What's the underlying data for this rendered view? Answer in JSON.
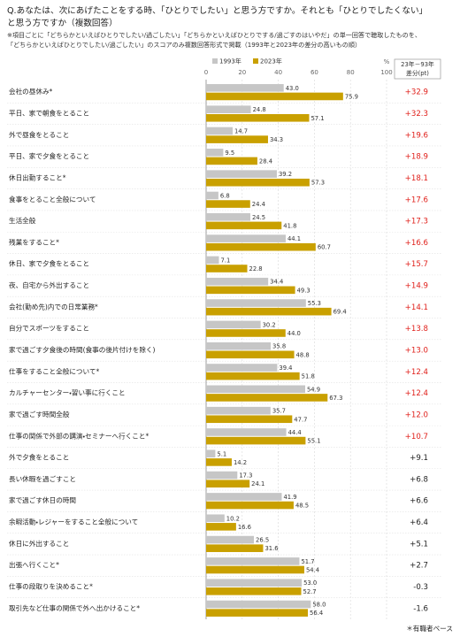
{
  "chart_data": {
    "type": "bar",
    "orientation": "horizontal",
    "title": [
      "Q.あなたは、次にあげたことをする時、「ひとりでしたい」と思う方ですか。それとも「ひとりでしたくない」",
      "と思う方ですか（複数回答）"
    ],
    "notes": [
      "※項目ごとに「どちらかといえばひとりでしたい/過ごしたい」「どちらかといえばひとりでする/過ごすのはいやだ」の単一回答で聴取したものを、",
      "「どちらかといえばひとりでしたい/過ごしたい」のスコアのみ複数回答形式で掲載（1993年と2023年の差分の高いもの順）"
    ],
    "footnote": "＊有職者ベース",
    "x_unit": "%",
    "xlim": [
      0,
      100
    ],
    "xticks": [
      0,
      20,
      40,
      60,
      80,
      100
    ],
    "grid": true,
    "categories": [
      "会社の昼休み*",
      "平日、家で朝食をとること",
      "外で昼食をとること",
      "平日、家で夕食をとること",
      "休日出勤すること*",
      "食事をとること全般について",
      "生活全般",
      "残業をすること*",
      "休日、家で夕食をとること",
      "夜、自宅から外出すること",
      "会社(勤め先)内での日常業務*",
      "自分でスポーツをすること",
      "家で過ごす夕食後の時間(食事の後片付けを除く)",
      "仕事をすること全般について*",
      "カルチャーセンター・習い事に行くこと",
      "家で過ごす時間全般",
      "仕事の関係で外部の講演・セミナーへ行くこと*",
      "外で夕食をとること",
      "長い休暇を過ごすこと",
      "家で過ごす休日の時間",
      "余暇活動・レジャーをすること全般について",
      "休日に外出すること",
      "出張へ行くこと*",
      "仕事の段取りを決めること*",
      "取引先など仕事の関係で外へ出かけること*"
    ],
    "series": [
      {
        "name": "1993年",
        "color": "#c6c6c6",
        "values": [
          43.0,
          24.8,
          14.7,
          9.5,
          39.2,
          6.8,
          24.5,
          44.1,
          7.1,
          34.4,
          55.3,
          30.2,
          35.8,
          39.4,
          54.9,
          35.7,
          44.4,
          5.1,
          17.3,
          41.9,
          10.2,
          26.5,
          51.7,
          53.0,
          58.0
        ],
        "value_labels": [
          "43.0",
          "24.8",
          "14.7",
          "9.5",
          "39.2",
          "6.8",
          "24.5",
          "44.1",
          "7.1",
          "34.4",
          "55.3",
          "30.2",
          "35.8",
          "39.4",
          "54.9",
          "35.7",
          "44.4",
          "5.1",
          "17.3",
          "41.9",
          "10.2",
          "26.5",
          "51.7",
          "53.0",
          "58.0"
        ]
      },
      {
        "name": "2023年",
        "color": "#c9a000",
        "values": [
          75.9,
          57.1,
          34.3,
          28.4,
          57.3,
          24.4,
          41.8,
          60.7,
          22.8,
          49.3,
          69.4,
          44.0,
          48.8,
          51.8,
          67.3,
          47.7,
          55.1,
          14.2,
          24.1,
          48.5,
          16.6,
          31.6,
          54.4,
          52.7,
          56.4
        ],
        "value_labels": [
          "75.9",
          "57.1",
          "34.3",
          "28.4",
          "57.3",
          "24.4",
          "41.8",
          "60.7",
          "22.8",
          "49.3",
          "69.4",
          "44.0",
          "48.8",
          "51.8",
          "67.3",
          "47.7",
          "55.1",
          "14.2",
          "24.1",
          "48.5",
          "16.6",
          "31.6",
          "54.4",
          "52.7",
          "56.4"
        ]
      }
    ],
    "differences": {
      "header": [
        "23年－93年",
        "差分(pt)"
      ],
      "values": [
        32.9,
        32.3,
        19.6,
        18.9,
        18.1,
        17.6,
        17.3,
        16.6,
        15.7,
        14.9,
        14.1,
        13.8,
        13.0,
        12.4,
        12.4,
        12.0,
        10.7,
        9.1,
        6.8,
        6.6,
        6.4,
        5.1,
        2.7,
        -0.3,
        -1.6
      ],
      "value_labels": [
        "+32.9",
        "+32.3",
        "+19.6",
        "+18.9",
        "+18.1",
        "+17.6",
        "+17.3",
        "+16.6",
        "+15.7",
        "+14.9",
        "+14.1",
        "+13.8",
        "+13.0",
        "+12.4",
        "+12.4",
        "+12.0",
        "+10.7",
        "+9.1",
        "+6.8",
        "+6.6",
        "+6.4",
        "+5.1",
        "+2.7",
        "-0.3",
        "-1.6"
      ],
      "colors": [
        "#e0201b",
        "#e0201b",
        "#e0201b",
        "#e0201b",
        "#e0201b",
        "#e0201b",
        "#e0201b",
        "#e0201b",
        "#e0201b",
        "#e0201b",
        "#e0201b",
        "#e0201b",
        "#e0201b",
        "#e0201b",
        "#e0201b",
        "#e0201b",
        "#e0201b",
        "#222222",
        "#222222",
        "#222222",
        "#222222",
        "#222222",
        "#222222",
        "#222222",
        "#222222"
      ]
    }
  }
}
